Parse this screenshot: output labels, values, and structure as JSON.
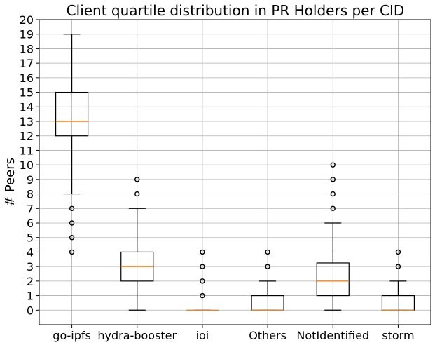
{
  "chart_data": {
    "type": "boxplot",
    "title": "Client quartile distribution in PR Holders per CID",
    "xlabel": "",
    "ylabel": "# Peers",
    "ylim": [
      -1,
      20
    ],
    "yticks": [
      0,
      1,
      2,
      3,
      4,
      5,
      6,
      7,
      8,
      9,
      10,
      11,
      12,
      13,
      14,
      15,
      16,
      17,
      18,
      19,
      20
    ],
    "grid": true,
    "categories": [
      "go-ipfs",
      "hydra-booster",
      "ioi",
      "Others",
      "NotIdentified",
      "storm"
    ],
    "boxes": [
      {
        "category": "go-ipfs",
        "whisker_low": 8,
        "q1": 12,
        "median": 13,
        "q3": 15,
        "whisker_high": 19,
        "outliers": [
          4,
          5,
          6,
          7
        ]
      },
      {
        "category": "hydra-booster",
        "whisker_low": 0,
        "q1": 2,
        "median": 3,
        "q3": 4,
        "whisker_high": 7,
        "outliers": [
          8,
          9
        ]
      },
      {
        "category": "ioi",
        "whisker_low": 0,
        "q1": 0,
        "median": 0,
        "q3": 0,
        "whisker_high": 0,
        "outliers": [
          1,
          2,
          3,
          4
        ]
      },
      {
        "category": "Others",
        "whisker_low": 0,
        "q1": 0,
        "median": 0,
        "q3": 1,
        "whisker_high": 2,
        "outliers": [
          3,
          4
        ]
      },
      {
        "category": "NotIdentified",
        "whisker_low": 0,
        "q1": 1,
        "median": 2,
        "q3": 3.25,
        "whisker_high": 6,
        "outliers": [
          7,
          8,
          9,
          10
        ]
      },
      {
        "category": "storm",
        "whisker_low": 0,
        "q1": 0,
        "median": 0,
        "q3": 1,
        "whisker_high": 2,
        "outliers": [
          3,
          4
        ]
      }
    ],
    "colors": {
      "box": "#000000",
      "median": "#ff7f0e",
      "grid": "#b0b0b0",
      "outlier": "#000000"
    }
  }
}
